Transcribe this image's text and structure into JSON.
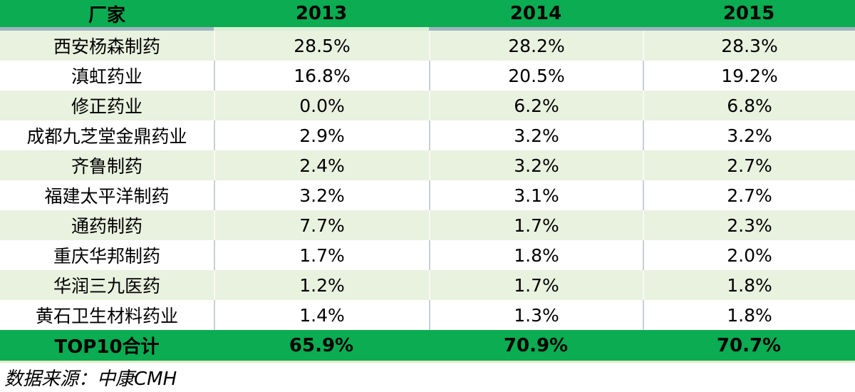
{
  "colors": {
    "header_green": "#0BAC52",
    "row_green": "#E9F1DF",
    "divider_gray": "#C9CED4",
    "divider_pale": "#F7FAF2",
    "header_border_gray": "#9FB5BE",
    "header_border_pale": "#D8EFD5",
    "total_border": "#E3ECC8",
    "text": "#000000"
  },
  "table": {
    "columns": [
      "厂家",
      "2013",
      "2014",
      "2015"
    ],
    "rows": [
      {
        "name": "西安杨森制药",
        "y2013": "28.5%",
        "y2014": "28.2%",
        "y2015": "28.3%"
      },
      {
        "name": "滇虹药业",
        "y2013": "16.8%",
        "y2014": "20.5%",
        "y2015": "19.2%"
      },
      {
        "name": "修正药业",
        "y2013": "0.0%",
        "y2014": "6.2%",
        "y2015": "6.8%"
      },
      {
        "name": "成都九芝堂金鼎药业",
        "y2013": "2.9%",
        "y2014": "3.2%",
        "y2015": "3.2%"
      },
      {
        "name": "齐鲁制药",
        "y2013": "2.4%",
        "y2014": "3.2%",
        "y2015": "2.7%"
      },
      {
        "name": "福建太平洋制药",
        "y2013": "3.2%",
        "y2014": "3.1%",
        "y2015": "2.7%"
      },
      {
        "name": "通药制药",
        "y2013": "7.7%",
        "y2014": "1.7%",
        "y2015": "2.3%"
      },
      {
        "name": "重庆华邦制药",
        "y2013": "1.7%",
        "y2014": "1.8%",
        "y2015": "2.0%"
      },
      {
        "name": "华润三九医药",
        "y2013": "1.2%",
        "y2014": "1.7%",
        "y2015": "1.8%"
      },
      {
        "name": "黄石卫生材料药业",
        "y2013": "1.4%",
        "y2014": "1.3%",
        "y2015": "1.8%"
      }
    ],
    "total": {
      "name": "TOP10合计",
      "y2013": "65.9%",
      "y2014": "70.9%",
      "y2015": "70.7%"
    }
  },
  "footer": {
    "source": "数据来源：中康CMH"
  },
  "chart_data": {
    "type": "table",
    "title": "",
    "columns": [
      "厂家",
      "2013",
      "2014",
      "2015"
    ],
    "unit": "%",
    "rows": [
      [
        "西安杨森制药",
        28.5,
        28.2,
        28.3
      ],
      [
        "滇虹药业",
        16.8,
        20.5,
        19.2
      ],
      [
        "修正药业",
        0.0,
        6.2,
        6.8
      ],
      [
        "成都九芝堂金鼎药业",
        2.9,
        3.2,
        3.2
      ],
      [
        "齐鲁制药",
        2.4,
        3.2,
        2.7
      ],
      [
        "福建太平洋制药",
        3.2,
        3.1,
        2.7
      ],
      [
        "通药制药",
        7.7,
        1.7,
        2.3
      ],
      [
        "重庆华邦制药",
        1.7,
        1.8,
        2.0
      ],
      [
        "华润三九医药",
        1.2,
        1.7,
        1.8
      ],
      [
        "黄石卫生材料药业",
        1.4,
        1.3,
        1.8
      ]
    ],
    "total_row": [
      "TOP10合计",
      65.9,
      70.9,
      70.7
    ],
    "source_note": "数据来源：中康CMH"
  }
}
